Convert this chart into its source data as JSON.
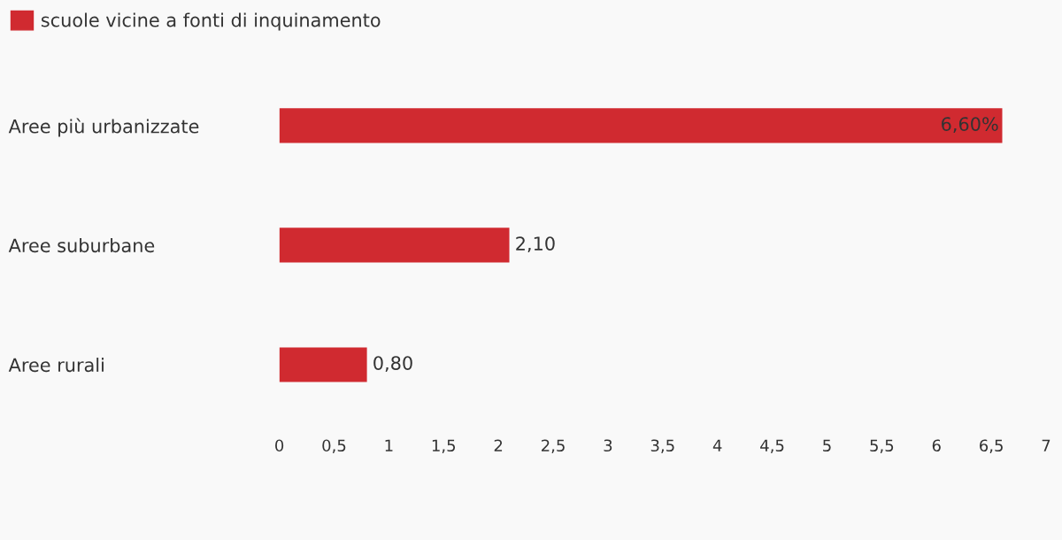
{
  "chart_data": {
    "type": "bar",
    "orientation": "horizontal",
    "categories": [
      "Aree più urbanizzate",
      "Aree suburbane",
      "Aree rurali"
    ],
    "series": [
      {
        "name": "scuole vicine a fonti di inquinamento",
        "color": "#d02a30",
        "values": [
          6.6,
          2.1,
          0.8
        ],
        "value_labels": [
          "6,60%",
          "2,10",
          "0,80"
        ]
      }
    ],
    "xlim": [
      0,
      7
    ],
    "xticks": [
      0,
      {
        "value": 0.5,
        "label": "0,5"
      },
      1,
      {
        "value": 1.5,
        "label": "1,5"
      },
      2,
      {
        "value": 2.5,
        "label": "2,5"
      },
      3,
      {
        "value": 3.5,
        "label": "3,5"
      },
      4,
      {
        "value": 4.5,
        "label": "4,5"
      },
      5,
      {
        "value": 5.5,
        "label": "5,5"
      },
      6,
      {
        "value": 6.5,
        "label": "6,5"
      },
      7
    ],
    "grid": false,
    "legend": "top left"
  }
}
